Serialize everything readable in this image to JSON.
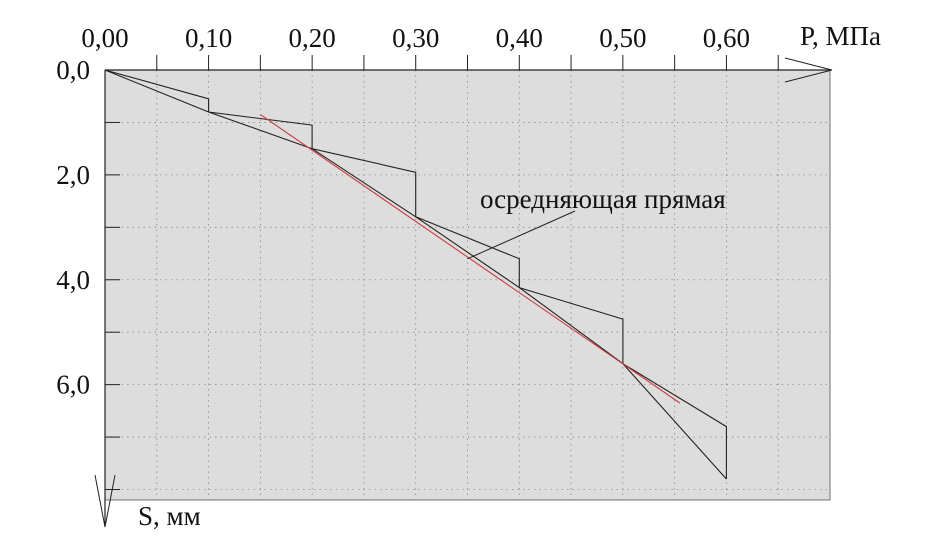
{
  "chart_data": {
    "type": "line",
    "title": "",
    "xlabel": "P, МПа",
    "ylabel": "S, мм",
    "x_ticks": [
      "0,00",
      "0,10",
      "0,20",
      "0,30",
      "0,40",
      "0,50",
      "0,60"
    ],
    "y_ticks": [
      "0,0",
      "2,0",
      "4,0",
      "6,0"
    ],
    "xlim": [
      0,
      0.7
    ],
    "ylim": [
      0,
      8.2
    ],
    "y_inverted": true,
    "grid": true,
    "colors": {
      "plot_background": "#dddddd",
      "grid": "#8a8a8a",
      "main_line": "#222222",
      "trend_line": "#d03a3a"
    },
    "series": [
      {
        "key": "stepped",
        "x": [
          0.0,
          0.1,
          0.1,
          0.2,
          0.2,
          0.3,
          0.3,
          0.4,
          0.4,
          0.5,
          0.5,
          0.6,
          0.6
        ],
        "y": [
          0.0,
          0.55,
          0.8,
          1.05,
          1.5,
          1.95,
          2.8,
          3.6,
          4.15,
          4.75,
          5.6,
          6.8,
          7.8
        ]
      },
      {
        "key": "envelope",
        "x": [
          0.0,
          0.1,
          0.2,
          0.3,
          0.4,
          0.5,
          0.6
        ],
        "y": [
          0.0,
          0.8,
          1.5,
          2.8,
          4.15,
          5.6,
          7.8
        ]
      },
      {
        "key": "trend",
        "x": [
          0.15,
          0.555
        ],
        "y": [
          0.85,
          6.35
        ]
      }
    ],
    "annotations": [
      {
        "text": "осредняющая прямая",
        "target_x": 0.35,
        "target_y": 3.6
      }
    ]
  }
}
